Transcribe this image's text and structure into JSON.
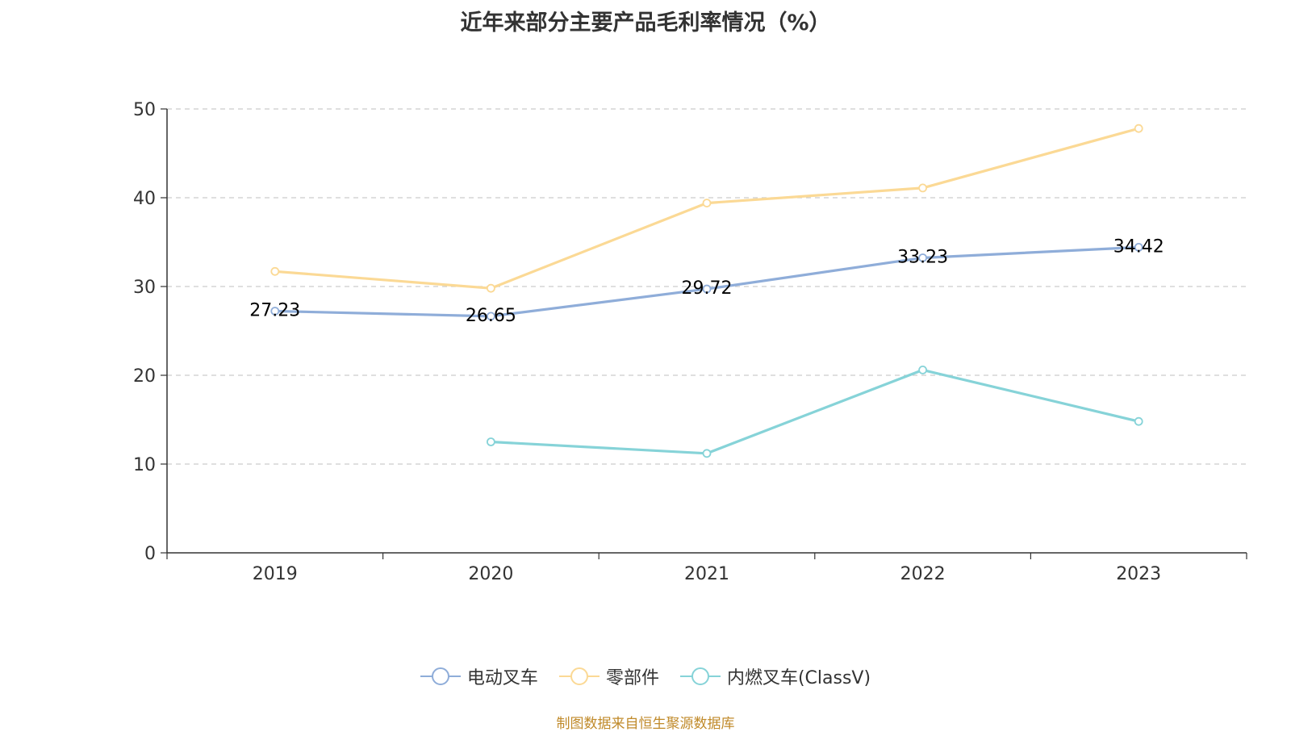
{
  "chart_data": {
    "type": "line",
    "title": "近年来部分主要产品毛利率情况（%）",
    "categories": [
      "2019",
      "2020",
      "2021",
      "2022",
      "2023"
    ],
    "ylim": [
      0,
      50
    ],
    "yticks": [
      "0",
      "10",
      "20",
      "30",
      "40",
      "50"
    ],
    "grid": true,
    "legend_position": "bottom",
    "series": [
      {
        "name": "电动叉车",
        "color": "#8fadd9",
        "values": [
          27.23,
          26.65,
          29.72,
          33.23,
          34.42
        ],
        "labels": [
          "27.23",
          "26.65",
          "29.72",
          "33.23",
          "34.42"
        ]
      },
      {
        "name": "零部件",
        "color": "#fbd995",
        "values": [
          31.7,
          29.8,
          39.4,
          41.1,
          47.8
        ],
        "labels": []
      },
      {
        "name": "内燃叉车(ClassV)",
        "color": "#86d3d8",
        "values": [
          null,
          12.5,
          11.2,
          20.6,
          14.8
        ],
        "labels": []
      }
    ]
  },
  "source_note": "制图数据来自恒生聚源数据库"
}
